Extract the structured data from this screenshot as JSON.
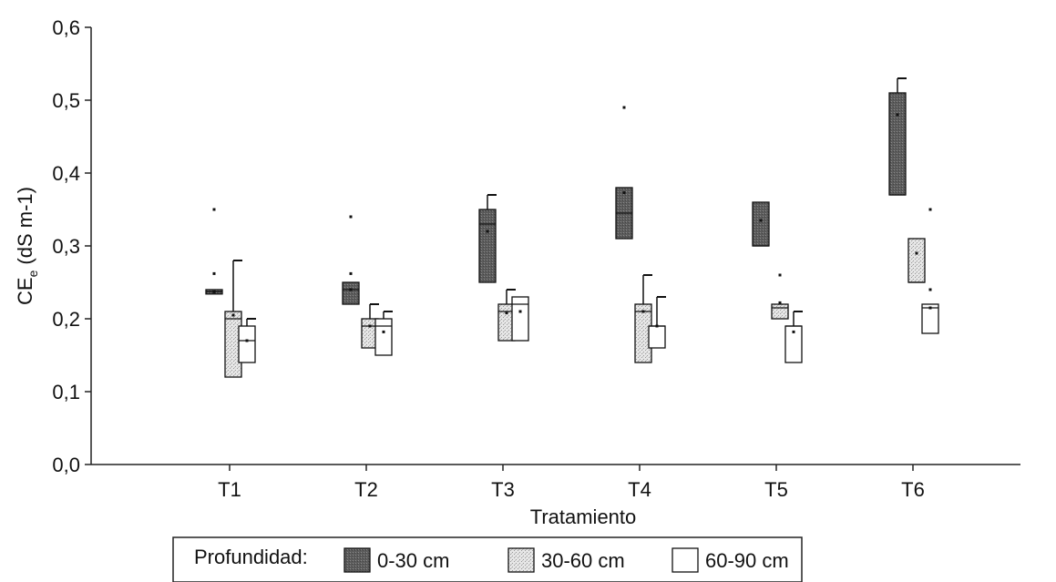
{
  "chart_data": {
    "type": "boxplot",
    "title": "",
    "xlabel": "Tratamiento",
    "ylabel": {
      "main": "CE",
      "subscript": "e",
      "unit": "(dS m-1)"
    },
    "ylim": [
      0,
      0.6
    ],
    "yticks": [
      "0,0",
      "0,1",
      "0,2",
      "0,3",
      "0,4",
      "0,5",
      "0,6"
    ],
    "categories": [
      "T1",
      "T2",
      "T3",
      "T4",
      "T5",
      "T6"
    ],
    "grid": false,
    "legend": {
      "title": "Profundidad:",
      "position": "bottom",
      "entries": [
        "0-30 cm",
        "30-60 cm",
        "60-90 cm"
      ]
    },
    "series": [
      {
        "name": "0-30 cm",
        "color": "#6e6e6e",
        "boxes": [
          {
            "category": "T1",
            "q1": 0.234,
            "median": 0.237,
            "q3": 0.24,
            "mean": 0.237,
            "whisker_high": null,
            "outliers": [
              0.262,
              0.35
            ]
          },
          {
            "category": "T2",
            "q1": 0.22,
            "median": 0.24,
            "q3": 0.25,
            "mean": 0.24,
            "whisker_high": null,
            "outliers": [
              0.262,
              0.34
            ]
          },
          {
            "category": "T3",
            "q1": 0.25,
            "median": 0.33,
            "q3": 0.35,
            "mean": 0.32,
            "whisker_high": 0.37,
            "outliers": []
          },
          {
            "category": "T4",
            "q1": 0.31,
            "median": 0.345,
            "q3": 0.38,
            "mean": 0.373,
            "whisker_high": null,
            "outliers": [
              0.49
            ]
          },
          {
            "category": "T5",
            "q1": 0.3,
            "median": 0.3,
            "q3": 0.36,
            "mean": 0.335,
            "whisker_high": null,
            "outliers": []
          },
          {
            "category": "T6",
            "q1": 0.37,
            "median": 0.37,
            "q3": 0.51,
            "mean": 0.48,
            "whisker_high": 0.53,
            "outliers": []
          }
        ]
      },
      {
        "name": "30-60 cm",
        "color": "#d0d0d0",
        "boxes": [
          {
            "category": "T1",
            "q1": 0.12,
            "median": 0.2,
            "q3": 0.21,
            "mean": 0.205,
            "whisker_high": 0.28,
            "outliers": []
          },
          {
            "category": "T2",
            "q1": 0.16,
            "median": 0.19,
            "q3": 0.2,
            "mean": 0.19,
            "whisker_high": 0.22,
            "outliers": []
          },
          {
            "category": "T3",
            "q1": 0.17,
            "median": 0.21,
            "q3": 0.22,
            "mean": 0.208,
            "whisker_high": 0.24,
            "outliers": []
          },
          {
            "category": "T4",
            "q1": 0.14,
            "median": 0.21,
            "q3": 0.22,
            "mean": 0.21,
            "whisker_high": 0.26,
            "outliers": []
          },
          {
            "category": "T5",
            "q1": 0.2,
            "median": 0.215,
            "q3": 0.22,
            "mean": 0.222,
            "whisker_high": null,
            "outliers": [
              0.26
            ]
          },
          {
            "category": "T6",
            "q1": 0.25,
            "median": 0.25,
            "q3": 0.31,
            "mean": 0.29,
            "whisker_high": null,
            "outliers": []
          }
        ]
      },
      {
        "name": "60-90 cm",
        "color": "#ffffff",
        "boxes": [
          {
            "category": "T1",
            "q1": 0.14,
            "median": 0.17,
            "q3": 0.19,
            "mean": 0.17,
            "whisker_high": 0.2,
            "outliers": []
          },
          {
            "category": "T2",
            "q1": 0.15,
            "median": 0.19,
            "q3": 0.2,
            "mean": 0.182,
            "whisker_high": 0.21,
            "outliers": []
          },
          {
            "category": "T3",
            "q1": 0.17,
            "median": 0.22,
            "q3": 0.23,
            "mean": 0.21,
            "whisker_high": null,
            "outliers": []
          },
          {
            "category": "T4",
            "q1": 0.16,
            "median": 0.19,
            "q3": 0.19,
            "mean": 0.19,
            "whisker_high": 0.23,
            "outliers": []
          },
          {
            "category": "T5",
            "q1": 0.14,
            "median": 0.19,
            "q3": 0.19,
            "mean": 0.182,
            "whisker_high": 0.21,
            "outliers": []
          },
          {
            "category": "T6",
            "q1": 0.18,
            "median": 0.215,
            "q3": 0.22,
            "mean": 0.215,
            "whisker_high": null,
            "outliers": [
              0.24,
              0.35
            ]
          }
        ]
      }
    ]
  }
}
